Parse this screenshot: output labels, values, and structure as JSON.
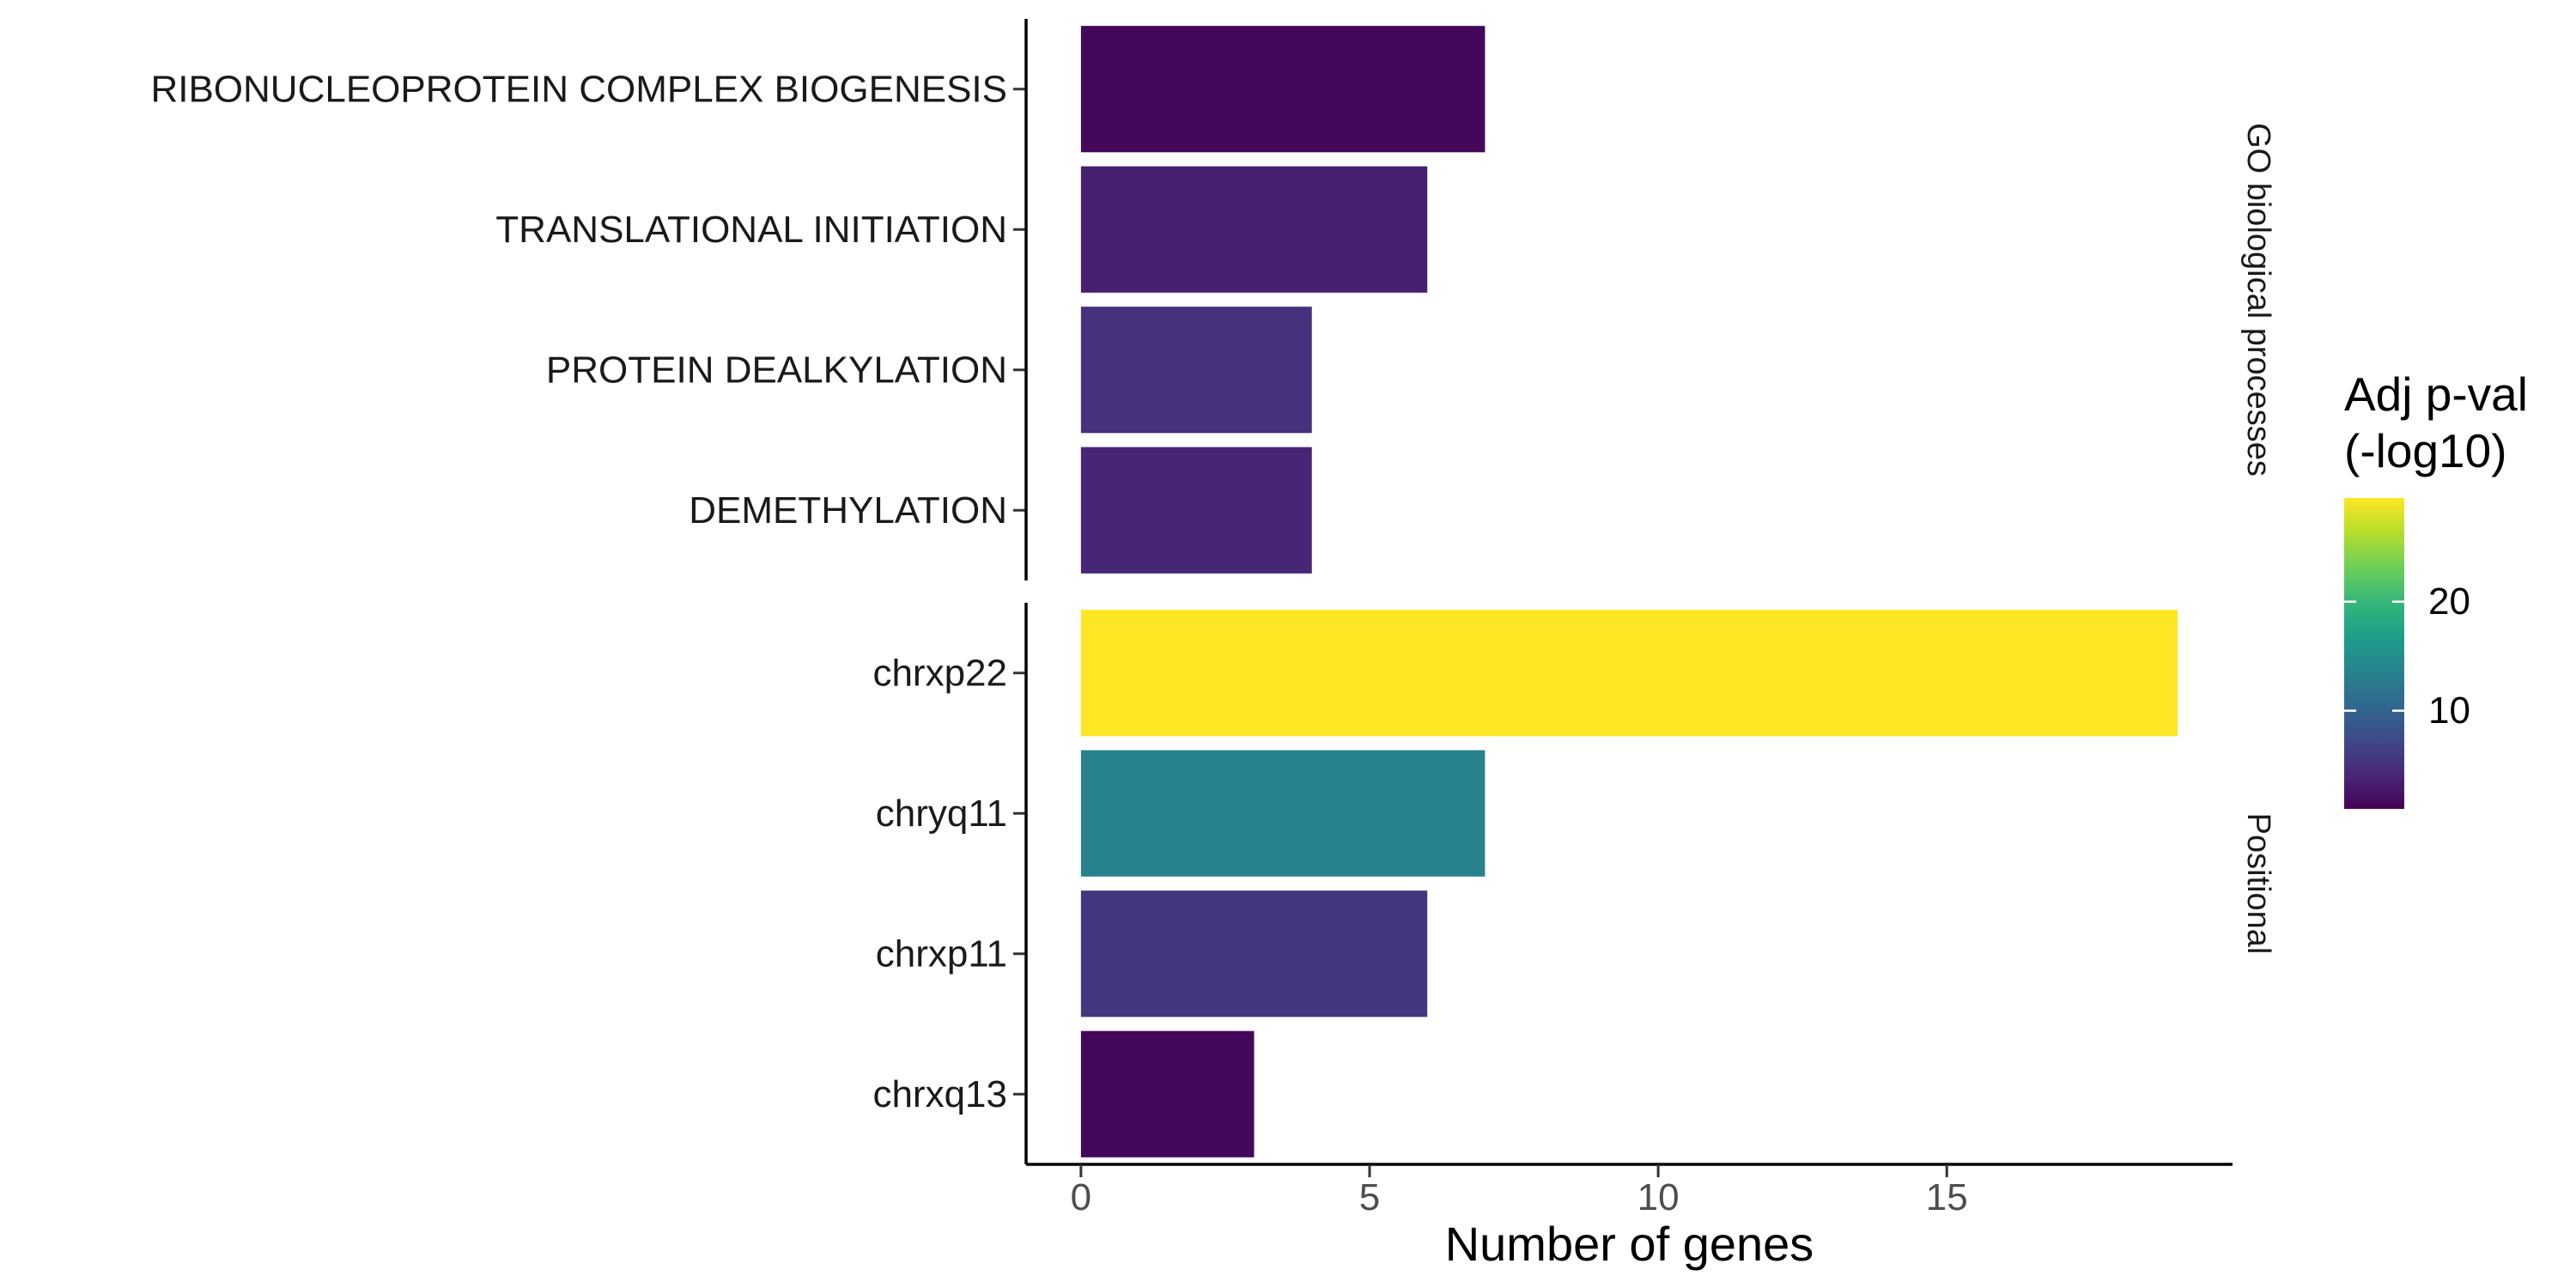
{
  "chart_data": {
    "type": "bar",
    "orientation": "horizontal",
    "xlabel": "Number of genes",
    "ylabel": "",
    "xlim": [
      -0.95,
      19.95
    ],
    "xticks": [
      0,
      5,
      10,
      15
    ],
    "grid": false,
    "facets": [
      {
        "name": "GO biological processes",
        "bars": [
          {
            "category": "RIBONUCLEOPROTEIN COMPLEX BIOGENESIS",
            "value": 7,
            "adj_pval_log10": 1.5
          },
          {
            "category": "TRANSLATIONAL INITIATION",
            "value": 6,
            "adj_pval_log10": 3.5
          },
          {
            "category": "PROTEIN DEALKYLATION",
            "value": 4,
            "adj_pval_log10": 5.0
          },
          {
            "category": "DEMETHYLATION",
            "value": 4,
            "adj_pval_log10": 4.0
          }
        ]
      },
      {
        "name": "Positional",
        "bars": [
          {
            "category": "chrxp22",
            "value": 19,
            "adj_pval_log10": 29.5
          },
          {
            "category": "chryq11",
            "value": 7,
            "adj_pval_log10": 13.5
          },
          {
            "category": "chrxp11",
            "value": 6,
            "adj_pval_log10": 5.5
          },
          {
            "category": "chrxq13",
            "value": 3,
            "adj_pval_log10": 1.5
          }
        ]
      }
    ],
    "legend": {
      "title_lines": [
        "Adj p-val",
        "(-log10)"
      ],
      "placement": "right",
      "colorscale": "viridis",
      "range": [
        1,
        29.5
      ],
      "ticks": [
        10,
        20
      ]
    }
  }
}
